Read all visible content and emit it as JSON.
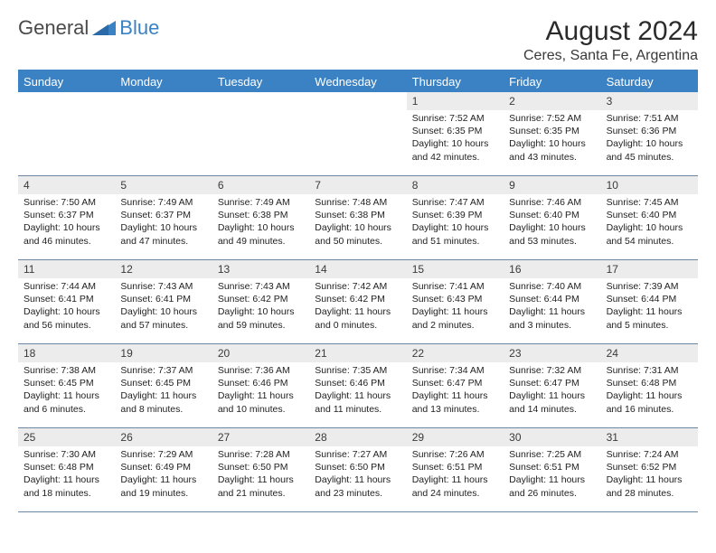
{
  "brand": {
    "text1": "General",
    "text2": "Blue"
  },
  "title": "August 2024",
  "location": "Ceres, Santa Fe, Argentina",
  "colors": {
    "header_bar": "#3b82c4",
    "daynum_bg": "#ececec",
    "text": "#222222",
    "divider": "#6d87a3",
    "background": "#ffffff"
  },
  "typography": {
    "title_fontsize": 30,
    "location_fontsize": 16,
    "weekday_fontsize": 13,
    "daynum_fontsize": 12,
    "body_fontsize": 10.5
  },
  "weekdays": [
    "Sunday",
    "Monday",
    "Tuesday",
    "Wednesday",
    "Thursday",
    "Friday",
    "Saturday"
  ],
  "weeks": [
    [
      {
        "n": "",
        "sr": "",
        "ss": "",
        "dl": ""
      },
      {
        "n": "",
        "sr": "",
        "ss": "",
        "dl": ""
      },
      {
        "n": "",
        "sr": "",
        "ss": "",
        "dl": ""
      },
      {
        "n": "",
        "sr": "",
        "ss": "",
        "dl": ""
      },
      {
        "n": "1",
        "sr": "Sunrise: 7:52 AM",
        "ss": "Sunset: 6:35 PM",
        "dl": "Daylight: 10 hours and 42 minutes."
      },
      {
        "n": "2",
        "sr": "Sunrise: 7:52 AM",
        "ss": "Sunset: 6:35 PM",
        "dl": "Daylight: 10 hours and 43 minutes."
      },
      {
        "n": "3",
        "sr": "Sunrise: 7:51 AM",
        "ss": "Sunset: 6:36 PM",
        "dl": "Daylight: 10 hours and 45 minutes."
      }
    ],
    [
      {
        "n": "4",
        "sr": "Sunrise: 7:50 AM",
        "ss": "Sunset: 6:37 PM",
        "dl": "Daylight: 10 hours and 46 minutes."
      },
      {
        "n": "5",
        "sr": "Sunrise: 7:49 AM",
        "ss": "Sunset: 6:37 PM",
        "dl": "Daylight: 10 hours and 47 minutes."
      },
      {
        "n": "6",
        "sr": "Sunrise: 7:49 AM",
        "ss": "Sunset: 6:38 PM",
        "dl": "Daylight: 10 hours and 49 minutes."
      },
      {
        "n": "7",
        "sr": "Sunrise: 7:48 AM",
        "ss": "Sunset: 6:38 PM",
        "dl": "Daylight: 10 hours and 50 minutes."
      },
      {
        "n": "8",
        "sr": "Sunrise: 7:47 AM",
        "ss": "Sunset: 6:39 PM",
        "dl": "Daylight: 10 hours and 51 minutes."
      },
      {
        "n": "9",
        "sr": "Sunrise: 7:46 AM",
        "ss": "Sunset: 6:40 PM",
        "dl": "Daylight: 10 hours and 53 minutes."
      },
      {
        "n": "10",
        "sr": "Sunrise: 7:45 AM",
        "ss": "Sunset: 6:40 PM",
        "dl": "Daylight: 10 hours and 54 minutes."
      }
    ],
    [
      {
        "n": "11",
        "sr": "Sunrise: 7:44 AM",
        "ss": "Sunset: 6:41 PM",
        "dl": "Daylight: 10 hours and 56 minutes."
      },
      {
        "n": "12",
        "sr": "Sunrise: 7:43 AM",
        "ss": "Sunset: 6:41 PM",
        "dl": "Daylight: 10 hours and 57 minutes."
      },
      {
        "n": "13",
        "sr": "Sunrise: 7:43 AM",
        "ss": "Sunset: 6:42 PM",
        "dl": "Daylight: 10 hours and 59 minutes."
      },
      {
        "n": "14",
        "sr": "Sunrise: 7:42 AM",
        "ss": "Sunset: 6:42 PM",
        "dl": "Daylight: 11 hours and 0 minutes."
      },
      {
        "n": "15",
        "sr": "Sunrise: 7:41 AM",
        "ss": "Sunset: 6:43 PM",
        "dl": "Daylight: 11 hours and 2 minutes."
      },
      {
        "n": "16",
        "sr": "Sunrise: 7:40 AM",
        "ss": "Sunset: 6:44 PM",
        "dl": "Daylight: 11 hours and 3 minutes."
      },
      {
        "n": "17",
        "sr": "Sunrise: 7:39 AM",
        "ss": "Sunset: 6:44 PM",
        "dl": "Daylight: 11 hours and 5 minutes."
      }
    ],
    [
      {
        "n": "18",
        "sr": "Sunrise: 7:38 AM",
        "ss": "Sunset: 6:45 PM",
        "dl": "Daylight: 11 hours and 6 minutes."
      },
      {
        "n": "19",
        "sr": "Sunrise: 7:37 AM",
        "ss": "Sunset: 6:45 PM",
        "dl": "Daylight: 11 hours and 8 minutes."
      },
      {
        "n": "20",
        "sr": "Sunrise: 7:36 AM",
        "ss": "Sunset: 6:46 PM",
        "dl": "Daylight: 11 hours and 10 minutes."
      },
      {
        "n": "21",
        "sr": "Sunrise: 7:35 AM",
        "ss": "Sunset: 6:46 PM",
        "dl": "Daylight: 11 hours and 11 minutes."
      },
      {
        "n": "22",
        "sr": "Sunrise: 7:34 AM",
        "ss": "Sunset: 6:47 PM",
        "dl": "Daylight: 11 hours and 13 minutes."
      },
      {
        "n": "23",
        "sr": "Sunrise: 7:32 AM",
        "ss": "Sunset: 6:47 PM",
        "dl": "Daylight: 11 hours and 14 minutes."
      },
      {
        "n": "24",
        "sr": "Sunrise: 7:31 AM",
        "ss": "Sunset: 6:48 PM",
        "dl": "Daylight: 11 hours and 16 minutes."
      }
    ],
    [
      {
        "n": "25",
        "sr": "Sunrise: 7:30 AM",
        "ss": "Sunset: 6:48 PM",
        "dl": "Daylight: 11 hours and 18 minutes."
      },
      {
        "n": "26",
        "sr": "Sunrise: 7:29 AM",
        "ss": "Sunset: 6:49 PM",
        "dl": "Daylight: 11 hours and 19 minutes."
      },
      {
        "n": "27",
        "sr": "Sunrise: 7:28 AM",
        "ss": "Sunset: 6:50 PM",
        "dl": "Daylight: 11 hours and 21 minutes."
      },
      {
        "n": "28",
        "sr": "Sunrise: 7:27 AM",
        "ss": "Sunset: 6:50 PM",
        "dl": "Daylight: 11 hours and 23 minutes."
      },
      {
        "n": "29",
        "sr": "Sunrise: 7:26 AM",
        "ss": "Sunset: 6:51 PM",
        "dl": "Daylight: 11 hours and 24 minutes."
      },
      {
        "n": "30",
        "sr": "Sunrise: 7:25 AM",
        "ss": "Sunset: 6:51 PM",
        "dl": "Daylight: 11 hours and 26 minutes."
      },
      {
        "n": "31",
        "sr": "Sunrise: 7:24 AM",
        "ss": "Sunset: 6:52 PM",
        "dl": "Daylight: 11 hours and 28 minutes."
      }
    ]
  ]
}
